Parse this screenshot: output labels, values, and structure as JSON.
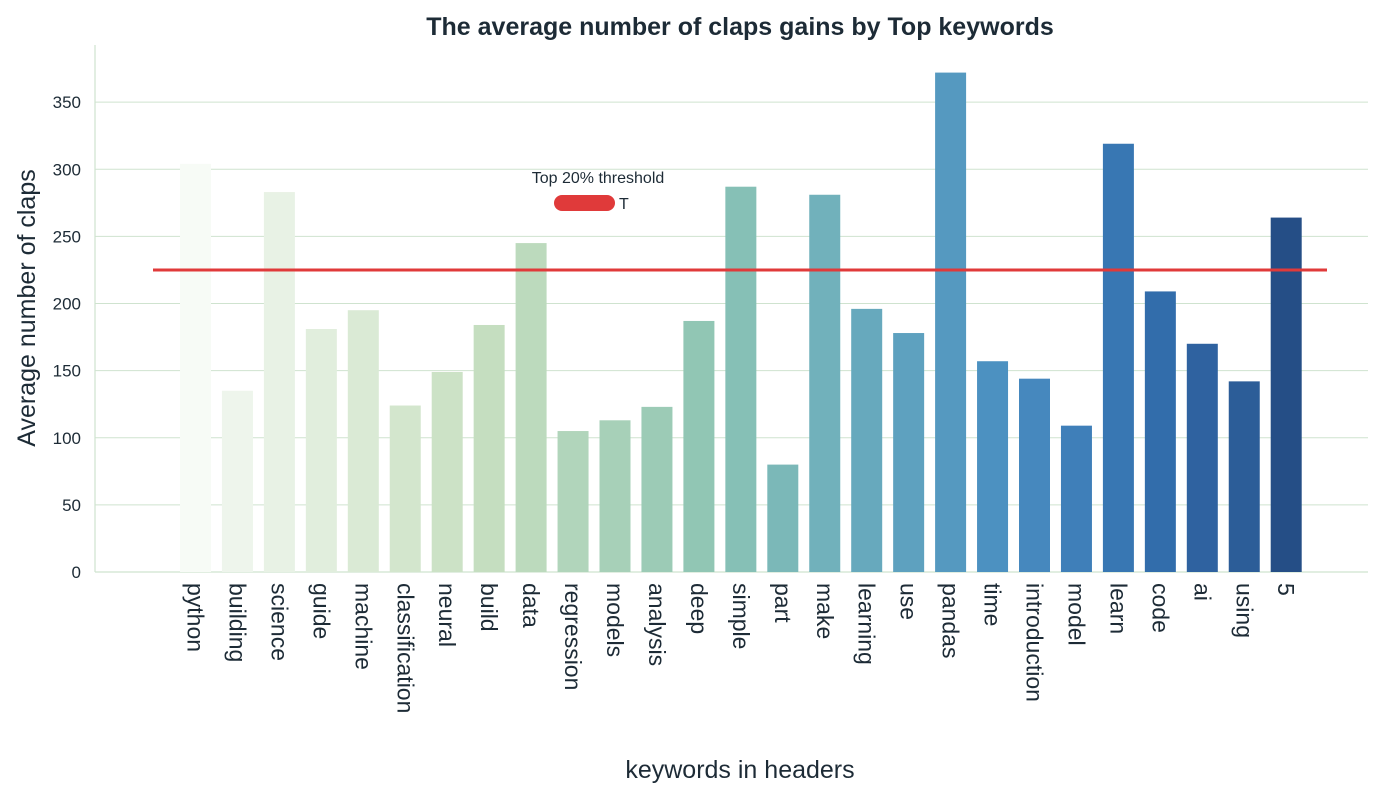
{
  "chart_data": {
    "type": "bar",
    "title": "The average number of claps gains by Top keywords",
    "xlabel": "keywords in headers",
    "ylabel": "Average number of claps",
    "ylim": [
      0,
      390
    ],
    "yticks": [
      0,
      50,
      100,
      150,
      200,
      250,
      300,
      350
    ],
    "grid": "horizontal",
    "categories": [
      "python",
      "building",
      "science",
      "guide",
      "machine",
      "classification",
      "neural",
      "build",
      "data",
      "regression",
      "models",
      "analysis",
      "deep",
      "simple",
      "part",
      "make",
      "learning",
      "use",
      "pandas",
      "time",
      "introduction",
      "model",
      "learn",
      "code",
      "ai",
      "using",
      "5"
    ],
    "values": [
      304,
      135,
      283,
      181,
      195,
      124,
      149,
      184,
      245,
      105,
      113,
      123,
      187,
      287,
      80,
      281,
      196,
      178,
      372,
      157,
      144,
      109,
      319,
      209,
      170,
      142,
      264
    ],
    "colors": [
      "#f7fbf6",
      "#eef5ec",
      "#e8f2e5",
      "#e1eedd",
      "#daead5",
      "#d3e6cd",
      "#cce2c6",
      "#c5dec0",
      "#bcdabd",
      "#b1d5bb",
      "#a7d0b8",
      "#9ccbb6",
      "#91c6b4",
      "#86c0b6",
      "#7bb8b8",
      "#71b1bb",
      "#67a9bd",
      "#5ea1bf",
      "#5599c0",
      "#4c91c1",
      "#4688be",
      "#3f7fb9",
      "#3877b3",
      "#326dab",
      "#2f62a0",
      "#2c5d98",
      "#254e86"
    ],
    "threshold": {
      "label": "Top 20% threshold",
      "value": 225,
      "color": "#e03a3a",
      "legend_marker": "T"
    },
    "legend_position": "upper-center"
  }
}
